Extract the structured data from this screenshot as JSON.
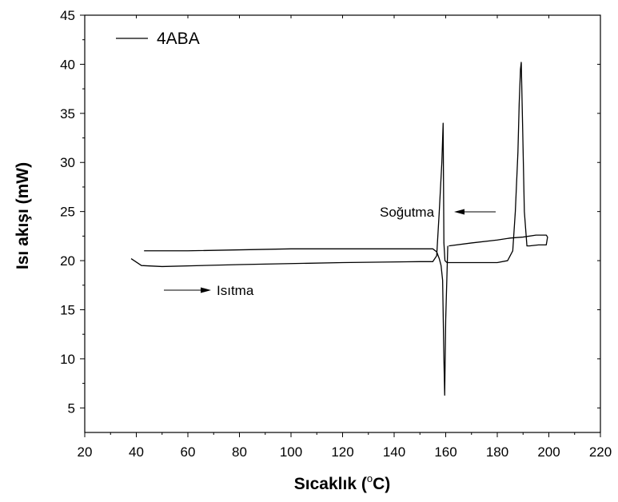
{
  "chart_data": {
    "type": "line",
    "xlabel_main": "Sıcaklık (",
    "xlabel_sup": "o",
    "xlabel_end": "C)",
    "ylabel": "Isı akışı (mW)",
    "xlim": [
      20,
      220
    ],
    "ylim": [
      2.5,
      45
    ],
    "xticks": [
      20,
      40,
      60,
      80,
      100,
      120,
      140,
      160,
      180,
      200,
      220
    ],
    "yticks": [
      5,
      10,
      15,
      20,
      25,
      30,
      35,
      40,
      45
    ],
    "grid": false,
    "legend": {
      "position": "top-left",
      "label": "4ABA"
    },
    "series": [
      {
        "name": "4ABA",
        "segments": [
          {
            "label": "Isıtma",
            "x": [
              38,
              42,
              50,
              80,
              120,
              150,
              155,
              156.5,
              157.5,
              158.5,
              159,
              159.3,
              159.7,
              160.5,
              170,
              180,
              184,
              186,
              187,
              188,
              188.5,
              189,
              189.3,
              189.8,
              190.5,
              191.5,
              192.5,
              196,
              199,
              199.5,
              199,
              195,
              190,
              185,
              180,
              170,
              161.2
            ],
            "y": [
              20.2,
              19.5,
              19.4,
              19.6,
              19.8,
              19.9,
              19.9,
              20.5,
              25.0,
              30.0,
              34.0,
              21.8,
              20.0,
              19.8,
              19.8,
              19.8,
              20.0,
              21.0,
              25.0,
              31.0,
              36.0,
              39.5,
              40.2,
              34.0,
              25.0,
              21.5,
              21.5,
              21.6,
              21.6,
              22.4,
              22.6,
              22.6,
              22.4,
              22.3,
              22.1,
              21.8,
              21.5
            ]
          },
          {
            "label": "Soğutma",
            "x": [
              160.8,
              160,
              159.6,
              159.3,
              158.8,
              158.2,
              157.5,
              156.5,
              155,
              140,
              100,
              60,
              43
            ],
            "y": [
              21.5,
              14.0,
              6.3,
              10.0,
              18.0,
              19.5,
              20.2,
              20.9,
              21.2,
              21.2,
              21.2,
              21.0,
              21.0
            ]
          }
        ]
      }
    ],
    "annotations": [
      {
        "text": "Isıtma",
        "arrow": "right"
      },
      {
        "text": "Soğutma",
        "arrow": "left"
      }
    ]
  }
}
